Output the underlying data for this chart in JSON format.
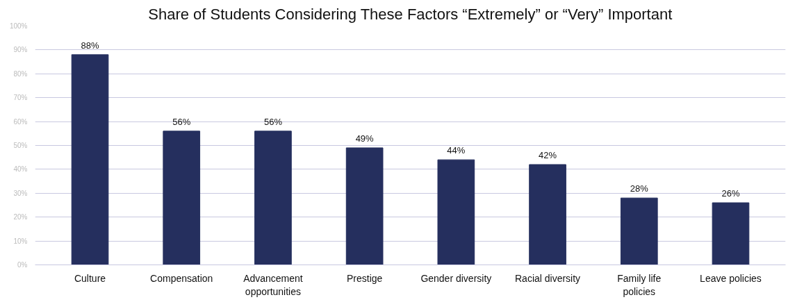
{
  "chart_data": {
    "type": "bar",
    "title": "Share of Students Considering These Factors “Extremely” or “Very” Important",
    "categories": [
      "Culture",
      "Compensation",
      "Advancement opportunities",
      "Prestige",
      "Gender diversity",
      "Racial diversity",
      "Family life policies",
      "Leave policies"
    ],
    "values": [
      88,
      56,
      56,
      49,
      44,
      42,
      28,
      26
    ],
    "value_labels": [
      "88%",
      "56%",
      "56%",
      "49%",
      "44%",
      "42%",
      "28%",
      "26%"
    ],
    "color": "#252f5e",
    "ylim": [
      0,
      100
    ],
    "yticks": [
      {
        "value": 0,
        "label": "0%"
      },
      {
        "value": 10,
        "label": "10%"
      },
      {
        "value": 20,
        "label": "20%"
      },
      {
        "value": 30,
        "label": "30%"
      },
      {
        "value": 40,
        "label": "40%"
      },
      {
        "value": 50,
        "label": "50%"
      },
      {
        "value": 60,
        "label": "60%"
      },
      {
        "value": 70,
        "label": "70%"
      },
      {
        "value": 80,
        "label": "80%"
      },
      {
        "value": 90,
        "label": "90%"
      },
      {
        "value": 100,
        "label": "100%"
      }
    ],
    "grid": "y"
  }
}
